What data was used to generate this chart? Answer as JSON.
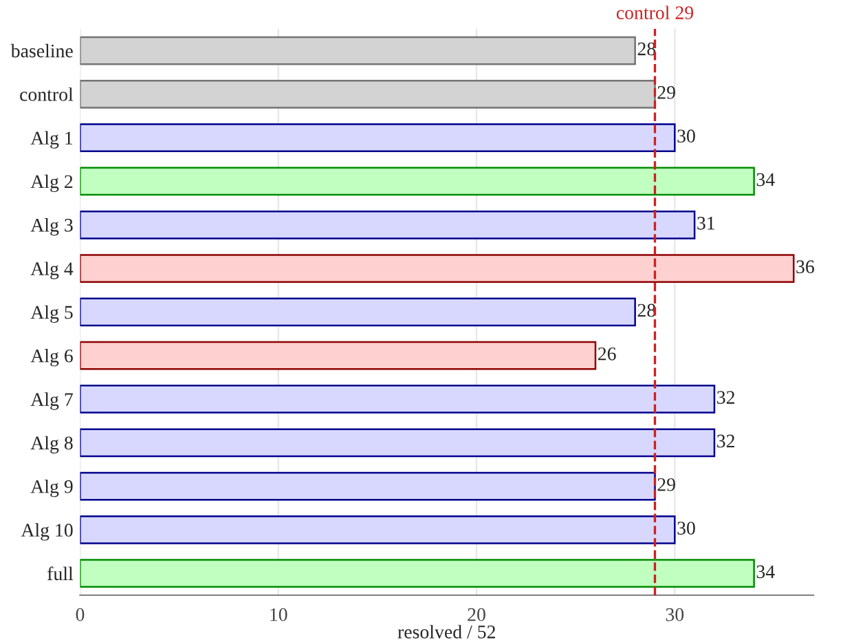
{
  "chart_data": {
    "type": "bar",
    "orientation": "horizontal",
    "xlabel": "resolved / 52",
    "categories": [
      "baseline",
      "control",
      "Alg 1",
      "Alg 2",
      "Alg 3",
      "Alg 4",
      "Alg 5",
      "Alg 6",
      "Alg 7",
      "Alg 8",
      "Alg 9",
      "Alg 10",
      "full"
    ],
    "values": [
      28,
      29,
      30,
      34,
      31,
      36,
      28,
      26,
      32,
      32,
      29,
      30,
      34
    ],
    "colors": [
      "#d3d3d3",
      "#d3d3d3",
      "#d8d8ff",
      "#c0ffc0",
      "#d8d8ff",
      "#ffd0d0",
      "#d8d8ff",
      "#ffd0d0",
      "#d8d8ff",
      "#d8d8ff",
      "#d8d8ff",
      "#d8d8ff",
      "#c0ffc0"
    ],
    "data_labels": true,
    "xlim": [
      0,
      37
    ],
    "xticks": [
      0,
      10,
      20,
      30
    ],
    "grid": "x",
    "ref_lines": [
      {
        "axis": "x",
        "value": 29,
        "label": "control 29",
        "color": "#cc2222",
        "line_style": "dashed"
      }
    ]
  }
}
